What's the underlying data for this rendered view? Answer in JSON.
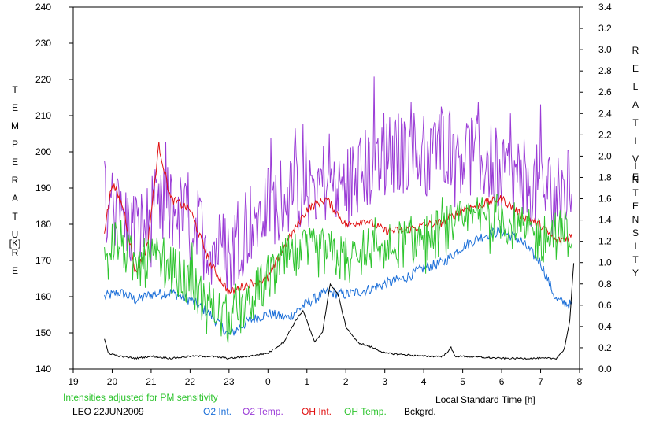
{
  "chart_data": {
    "type": "line",
    "left_axis_label_letters": [
      "T",
      "E",
      "M",
      "P",
      "E",
      "R",
      "A",
      "T",
      "U",
      "R",
      "E",
      "[K]"
    ],
    "right_axis_label_letters": [
      "R",
      "E",
      "L",
      "A",
      "T",
      "I",
      "V",
      "E",
      "I",
      "N",
      "T",
      "E",
      "N",
      "S",
      "I",
      "T",
      "Y"
    ],
    "xlabel": "Local Standard Time [h]",
    "x_ticks": [
      19,
      20,
      21,
      22,
      23,
      24,
      25,
      26,
      27,
      28,
      29,
      30,
      31,
      32
    ],
    "x_tick_labels": [
      "19",
      "20",
      "21",
      "22",
      "23",
      "0",
      "1",
      "2",
      "3",
      "4",
      "5",
      "6",
      "7",
      "8"
    ],
    "xlim": [
      19,
      32
    ],
    "y_left_ticks": [
      140,
      150,
      160,
      170,
      180,
      190,
      200,
      210,
      220,
      230,
      240
    ],
    "y_left_tick_labels": [
      "140",
      "150",
      "160",
      "170",
      "180",
      "190",
      "200",
      "210",
      "220",
      "230",
      "240"
    ],
    "y_left_lim": [
      140,
      240
    ],
    "y_right_ticks": [
      0,
      0.2,
      0.4,
      0.6,
      0.8,
      1.0,
      1.2,
      1.4,
      1.6,
      1.8,
      2.0,
      2.2,
      2.4,
      2.6,
      2.8,
      3.0,
      3.2,
      3.4
    ],
    "y_right_tick_labels": [
      "0.0",
      "0.2",
      "0.4",
      "0.6",
      "0.8",
      "1.0",
      "1.2",
      "1.4",
      "1.6",
      "1.8",
      "2.0",
      "2.2",
      "2.4",
      "2.6",
      "2.8",
      "3.0",
      "3.2",
      "3.4"
    ],
    "y_right_lim": [
      0,
      3.4
    ],
    "annotation": "Intensities adjusted for PM sensitivity",
    "station": "LEO 22JUN2009",
    "series": [
      {
        "name": "O2 Int.",
        "color": "#1a6ed8",
        "axis": "right",
        "amp": 0.05,
        "x": [
          19.8,
          20.2,
          20.6,
          21.0,
          21.5,
          22.0,
          22.5,
          23.0,
          23.5,
          24.0,
          24.5,
          25.0,
          25.5,
          26.0,
          26.5,
          27.0,
          27.5,
          28.0,
          28.5,
          29.0,
          29.5,
          30.0,
          30.5,
          31.0,
          31.4,
          31.8
        ],
        "y": [
          0.68,
          0.72,
          0.65,
          0.7,
          0.72,
          0.65,
          0.52,
          0.32,
          0.45,
          0.52,
          0.48,
          0.62,
          0.72,
          0.7,
          0.74,
          0.8,
          0.85,
          0.95,
          1.0,
          1.15,
          1.25,
          1.3,
          1.2,
          1.0,
          0.65,
          0.6
        ]
      },
      {
        "name": "O2 Temp.",
        "color": "#9a3bd6",
        "axis": "left",
        "amp": 10,
        "x": [
          19.8,
          20.2,
          20.6,
          21.0,
          21.5,
          22.0,
          22.5,
          23.0,
          23.5,
          24.0,
          24.5,
          25.0,
          25.5,
          26.0,
          26.5,
          27.0,
          27.5,
          28.0,
          28.5,
          29.0,
          29.5,
          30.0,
          30.5,
          31.0,
          31.4,
          31.8
        ],
        "y": [
          190,
          182,
          178,
          180,
          185,
          180,
          175,
          172,
          180,
          185,
          188,
          190,
          192,
          190,
          195,
          198,
          200,
          200,
          203,
          200,
          198,
          195,
          192,
          190,
          188,
          190
        ]
      },
      {
        "name": "OH Int.",
        "color": "#e01010",
        "axis": "right",
        "amp": 0.04,
        "x": [
          19.8,
          20.0,
          20.3,
          20.6,
          20.9,
          21.2,
          21.5,
          22.0,
          22.5,
          23.0,
          23.5,
          24.0,
          24.5,
          25.0,
          25.5,
          26.0,
          26.5,
          27.0,
          27.5,
          28.0,
          28.5,
          29.0,
          29.5,
          30.0,
          30.5,
          31.0,
          31.4,
          31.8
        ],
        "y": [
          1.3,
          1.75,
          1.5,
          0.9,
          1.15,
          2.1,
          1.6,
          1.5,
          1.0,
          0.72,
          0.8,
          0.85,
          1.2,
          1.5,
          1.6,
          1.35,
          1.4,
          1.3,
          1.3,
          1.35,
          1.38,
          1.5,
          1.55,
          1.6,
          1.45,
          1.35,
          1.2,
          1.25
        ]
      },
      {
        "name": "OH Temp.",
        "color": "#2ec42e",
        "axis": "left",
        "amp": 7,
        "x": [
          19.8,
          20.2,
          20.6,
          21.0,
          21.5,
          22.0,
          22.5,
          23.0,
          23.5,
          24.0,
          24.5,
          25.0,
          25.5,
          26.0,
          26.5,
          27.0,
          27.5,
          28.0,
          28.5,
          29.0,
          29.5,
          30.0,
          30.5,
          31.0,
          31.4,
          31.8
        ],
        "y": [
          176,
          175,
          168,
          170,
          168,
          163,
          158,
          153,
          158,
          165,
          170,
          172,
          172,
          170,
          172,
          173,
          175,
          176,
          178,
          180,
          182,
          182,
          178,
          176,
          177,
          178
        ]
      },
      {
        "name": "Bckgrd.",
        "color": "#000000",
        "axis": "right",
        "amp": 0.008,
        "x": [
          19.8,
          19.9,
          20.2,
          20.6,
          21.0,
          21.5,
          22.0,
          22.5,
          23.0,
          23.5,
          24.0,
          24.4,
          24.7,
          24.9,
          25.2,
          25.4,
          25.6,
          25.8,
          26.0,
          26.3,
          26.7,
          27.0,
          28.0,
          28.5,
          28.7,
          28.8,
          29.0,
          30.0,
          31.0,
          31.4,
          31.6,
          31.75,
          31.85
        ],
        "y": [
          0.28,
          0.15,
          0.12,
          0.1,
          0.12,
          0.1,
          0.12,
          0.12,
          0.1,
          0.12,
          0.15,
          0.25,
          0.45,
          0.55,
          0.25,
          0.35,
          0.8,
          0.7,
          0.4,
          0.25,
          0.2,
          0.15,
          0.12,
          0.12,
          0.2,
          0.12,
          0.12,
          0.1,
          0.1,
          0.1,
          0.18,
          0.45,
          1.0
        ]
      }
    ]
  }
}
